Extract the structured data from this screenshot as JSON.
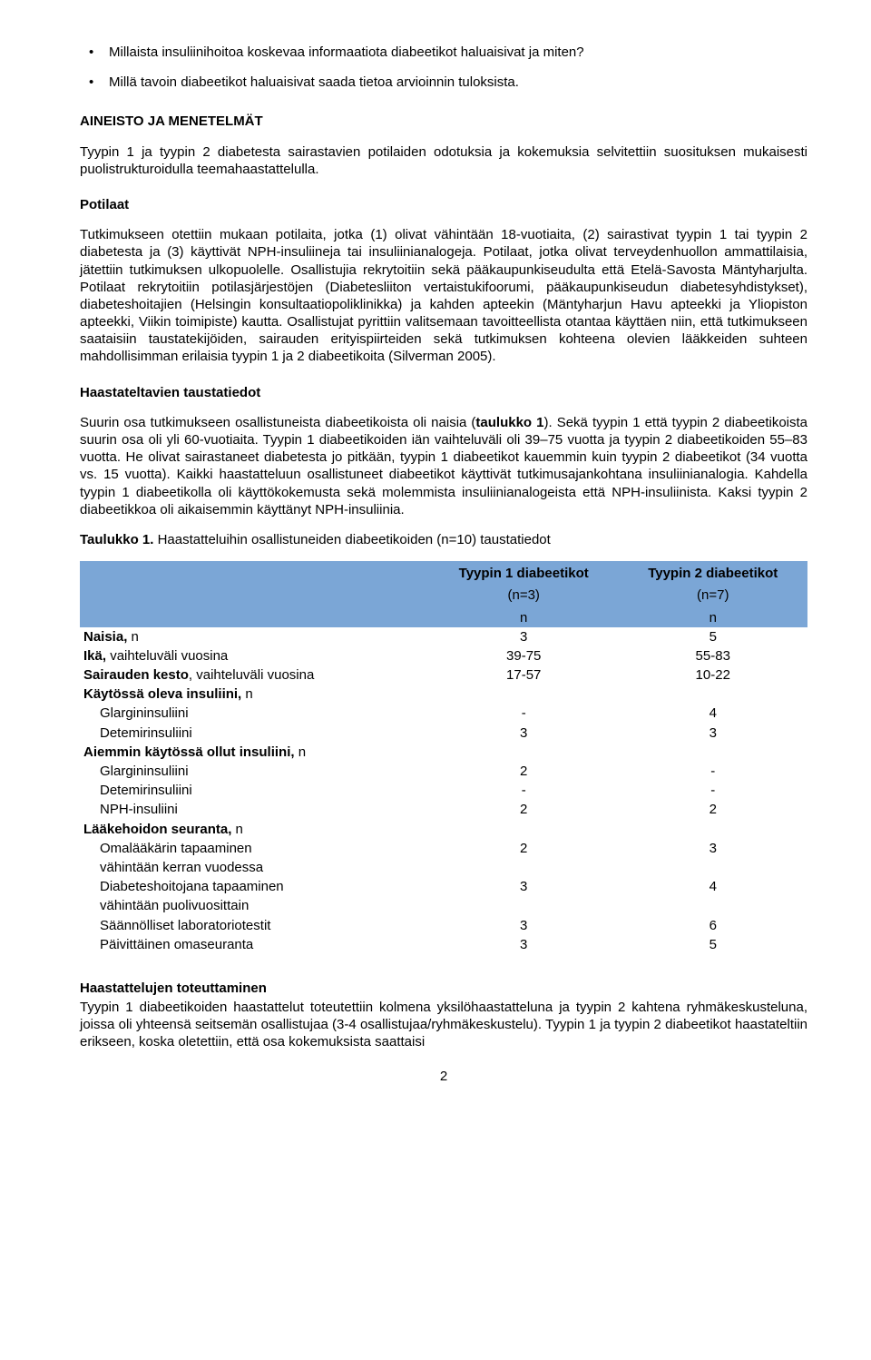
{
  "bullets": [
    "Millaista insuliinihoitoa koskevaa informaatiota diabeetikot haluaisivat ja miten?",
    "Millä tavoin diabeetikot haluaisivat saada tietoa arvioinnin tuloksista."
  ],
  "h_aineisto": "AINEISTO JA MENETELMÄT",
  "p_aineisto": "Tyypin 1 ja tyypin 2 diabetesta sairastavien potilaiden odotuksia ja kokemuksia selvitettiin suosituksen mukaisesti puolistrukturoidulla teemahaastattelulla.",
  "h_potilaat": "Potilaat",
  "p_potilaat": "Tutkimukseen otettiin mukaan potilaita, jotka (1) olivat vähintään 18-vuotiaita, (2) sairastivat tyypin 1 tai tyypin 2 diabetesta ja (3) käyttivät NPH-insuliineja tai insuliinianalogeja. Potilaat, jotka olivat terveydenhuollon ammattilaisia, jätettiin tutkimuksen ulkopuolelle. Osallistujia rekrytoitiin sekä pääkaupunkiseudulta että Etelä-Savosta Mäntyharjulta. Potilaat rekrytoitiin potilasjärjestöjen (Diabetesliiton vertaistukifoorumi, pääkaupunkiseudun diabetesyhdistykset), diabeteshoitajien (Helsingin konsultaatiopoliklinikka) ja kahden apteekin (Mäntyharjun Havu apteekki ja Yliopiston apteekki, Viikin toimipiste) kautta. Osallistujat pyrittiin valitsemaan tavoitteellista otantaa käyttäen niin, että tutkimukseen saataisiin taustatekijöiden, sairauden erityispiirteiden sekä tutkimuksen kohteena olevien lääkkeiden suhteen mahdollisimman erilaisia tyypin 1 ja 2 diabeetikoita (Silverman 2005).",
  "h_tausta": "Haastateltavien taustatiedot",
  "p_tausta_a": "Suurin osa tutkimukseen osallistuneista diabeetikoista oli naisia (",
  "p_tausta_b": "taulukko 1",
  "p_tausta_c": "). Sekä tyypin 1 että tyypin 2 diabeetikoista suurin osa oli yli 60-vuotiaita. Tyypin 1 diabeetikoiden iän vaihteluväli oli 39–75 vuotta ja tyypin 2 diabeetikoiden 55–83 vuotta. He olivat sairastaneet diabetesta jo pitkään, tyypin 1 diabeetikot kauemmin kuin tyypin 2 diabeetikot (34 vuotta vs. 15 vuotta). Kaikki haastatteluun osallistuneet diabeetikot käyttivät tutkimusajankohtana insuliinianalogia. Kahdella tyypin 1 diabeetikolla oli käyttökokemusta sekä molemmista insuliinianalogeista että NPH-insuliinista. Kaksi tyypin 2 diabeetikkoa oli aikaisemmin käyttänyt NPH-insuliinia.",
  "table_caption_a": "Taulukko 1.",
  "table_caption_b": " Haastatteluihin osallistuneiden diabeetikoiden (n=10) taustatiedot",
  "table": {
    "header_bg": "#7ba6d6",
    "col1_label": "",
    "col2_title": "Tyypin 1 diabeetikot",
    "col3_title": "Tyypin 2 diabeetikot",
    "col2_sub1": "(n=3)",
    "col3_sub1": "(n=7)",
    "col2_sub2": "n",
    "col3_sub2": "n",
    "rows": [
      {
        "label_b": "Naisia,",
        "label_p": " n",
        "v1": "3",
        "v2": "5"
      },
      {
        "label_b": "Ikä,",
        "label_p": " vaihteluväli vuosina",
        "v1": "39-75",
        "v2": "55-83"
      },
      {
        "label_b": "Sairauden kesto",
        "label_p": ", vaihteluväli vuosina",
        "v1": "17-57",
        "v2": "10-22"
      },
      {
        "label_b": "Käytössä oleva insuliini,",
        "label_p": " n",
        "v1": "",
        "v2": ""
      },
      {
        "indent": true,
        "label_p": "Glargininsuliini",
        "v1": "-",
        "v2": "4"
      },
      {
        "indent": true,
        "label_p": "Detemirinsuliini",
        "v1": "3",
        "v2": "3"
      },
      {
        "label_b": "Aiemmin käytössä ollut insuliini,",
        "label_p": " n",
        "v1": "",
        "v2": ""
      },
      {
        "indent": true,
        "label_p": "Glargininsuliini",
        "v1": "2",
        "v2": "-"
      },
      {
        "indent": true,
        "label_p": "Detemirinsuliini",
        "v1": "-",
        "v2": "-"
      },
      {
        "indent": true,
        "label_p": "NPH-insuliini",
        "v1": "2",
        "v2": "2"
      },
      {
        "label_b": "Lääkehoidon seuranta,",
        "label_p": " n",
        "v1": "",
        "v2": ""
      },
      {
        "indent": true,
        "label_p": "Omalääkärin tapaaminen",
        "v1": "2",
        "v2": "3"
      },
      {
        "indent": true,
        "label_p": "vähintään kerran vuodessa",
        "v1": "",
        "v2": ""
      },
      {
        "indent": true,
        "label_p": "Diabeteshoitojana tapaaminen",
        "v1": "3",
        "v2": "4"
      },
      {
        "indent": true,
        "label_p": "vähintään puolivuosittain",
        "v1": "",
        "v2": ""
      },
      {
        "indent": true,
        "sep": true,
        "label_p": "Säännölliset laboratoriotestit",
        "v1": "3",
        "v2": "6"
      },
      {
        "indent": true,
        "label_p": "Päivittäinen omaseuranta",
        "v1": "3",
        "v2": "5"
      }
    ]
  },
  "h_toteutus": "Haastattelujen toteuttaminen",
  "p_toteutus": "Tyypin 1 diabeetikoiden haastattelut toteutettiin kolmena yksilöhaastatteluna ja tyypin 2 kahtena ryhmäkeskusteluna, joissa oli yhteensä seitsemän osallistujaa (3-4 osallistujaa/ryhmäkeskustelu). Tyypin 1 ja tyypin 2 diabeetikot haastateltiin erikseen, koska oletettiin, että osa kokemuksista saattaisi",
  "page_number": "2"
}
